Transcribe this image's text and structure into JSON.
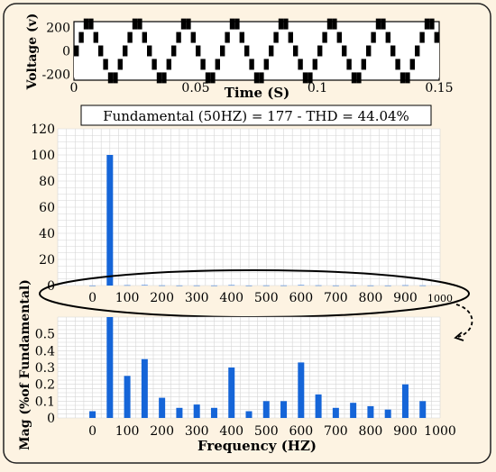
{
  "chart_data": [
    {
      "type": "line",
      "title": "",
      "xlabel": "Time (S)",
      "ylabel": "Voltage (v)",
      "xlim": [
        0,
        0.15
      ],
      "ylim": [
        -250,
        250
      ],
      "x_ticks": [
        "0",
        "0.05",
        "0.1",
        "0.15"
      ],
      "y_ticks": [
        "200",
        "0",
        "-200"
      ],
      "waveform": {
        "frequency_hz": 50,
        "levels": [
          -230,
          -115,
          0,
          115,
          230
        ],
        "pattern_per_cycle": [
          0,
          115,
          230,
          230,
          115,
          0,
          -115,
          -230,
          -230,
          -115
        ]
      },
      "grid": false
    },
    {
      "type": "bar",
      "title": "Fundamental (50HZ) = 177 - THD = 44.04%",
      "xlabel": "",
      "ylabel": "",
      "xlim": [
        -100,
        1000
      ],
      "ylim": [
        0,
        120
      ],
      "x_ticks": [
        "0",
        "100",
        "200",
        "300",
        "400",
        "500",
        "600",
        "700",
        "800",
        "900",
        "1000"
      ],
      "y_ticks": [
        "0",
        "20",
        "40",
        "60",
        "80",
        "100",
        "120"
      ],
      "x": [
        0,
        50,
        100,
        150,
        200,
        250,
        300,
        350,
        400,
        450,
        500,
        550,
        600,
        650,
        700,
        750,
        800,
        850,
        900,
        950
      ],
      "values": [
        0.04,
        100,
        0.25,
        0.35,
        0.12,
        0.06,
        0.08,
        0.06,
        0.3,
        0.04,
        0.1,
        0.1,
        0.33,
        0.14,
        0.06,
        0.09,
        0.07,
        0.05,
        0.2,
        0.1
      ],
      "color": "#1565d8",
      "grid": true
    },
    {
      "type": "bar",
      "title": "",
      "xlabel": "Frequency (HZ)",
      "ylabel": "Mag (%of Fundamental)",
      "xlim": [
        -100,
        1000
      ],
      "ylim": [
        0,
        0.6
      ],
      "x_ticks": [
        "0",
        "100",
        "200",
        "300",
        "400",
        "500",
        "600",
        "700",
        "800",
        "900",
        "1000"
      ],
      "y_ticks": [
        "0",
        "0.1",
        "0.2",
        "0.3",
        "0.4",
        "0.5"
      ],
      "x": [
        0,
        50,
        100,
        150,
        200,
        250,
        300,
        350,
        400,
        450,
        500,
        550,
        600,
        650,
        700,
        750,
        800,
        850,
        900,
        950
      ],
      "values": [
        0.04,
        0.6,
        0.25,
        0.35,
        0.12,
        0.06,
        0.08,
        0.06,
        0.3,
        0.04,
        0.1,
        0.1,
        0.33,
        0.14,
        0.06,
        0.09,
        0.07,
        0.05,
        0.2,
        0.1
      ],
      "clipped_value_label": "100",
      "color": "#1565d8",
      "grid": true
    }
  ],
  "colors": {
    "background": "#fdf3e2",
    "bar": "#1565d8",
    "grid": "#d5d5d5",
    "plot_bg": "#ffffff"
  }
}
